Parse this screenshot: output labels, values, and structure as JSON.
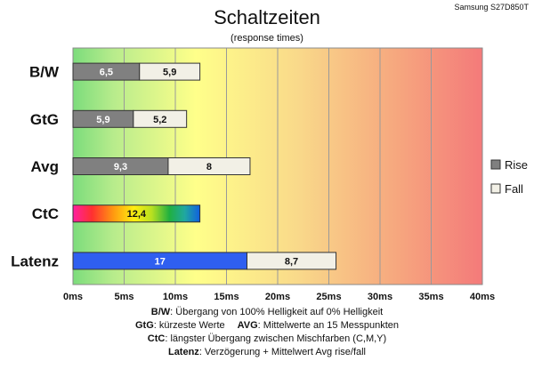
{
  "chart_data": {
    "type": "bar",
    "orientation": "horizontal",
    "stacked": true,
    "title": "Schaltzeiten",
    "subtitle": "(response times)",
    "corner_label": "Samsung S27D850T",
    "categories": [
      "B/W",
      "GtG",
      "Avg",
      "CtC",
      "Latenz"
    ],
    "series": [
      {
        "name": "Rise",
        "values": [
          6.5,
          5.9,
          9.3,
          null,
          17
        ],
        "labels": [
          "6,5",
          "5,9",
          "9,3",
          null,
          "17"
        ],
        "color": "#808080"
      },
      {
        "name": "Fall",
        "values": [
          5.9,
          5.2,
          8,
          null,
          8.7
        ],
        "labels": [
          "5,9",
          "5,2",
          "8",
          null,
          "8,7"
        ],
        "color": "#f2f0e6"
      }
    ],
    "single_bars": [
      {
        "category": "CtC",
        "value": 12.4,
        "label": "12,4",
        "fill": "rainbow"
      }
    ],
    "special_colors": {
      "latenz_rise": "#2f5ff0",
      "gradient_left": "#7cdc7c",
      "gradient_mid": "#ffff8a",
      "gradient_right": "#f47a7a"
    },
    "x_ticks": [
      "0ms",
      "5ms",
      "10ms",
      "15ms",
      "20ms",
      "25ms",
      "30ms",
      "35ms",
      "40ms"
    ],
    "xlim": [
      0,
      40
    ],
    "grid": true,
    "legend_position": "right"
  },
  "notes": {
    "line1_key": "B/W",
    "line1_text": ":  Übergang von 100% Helligkeit auf 0% Helligkeit",
    "line2_key_a": "GtG",
    "line2_text_a": ": kürzeste  Werte",
    "line2_key_b": "AVG",
    "line2_text_b": ": Mittelwerte  an 15 Messpunkten",
    "line3_key": "CtC",
    "line3_text": ": längster Übergang  zwischen Mischfarben (C,M,Y)",
    "line4_key": "Latenz",
    "line4_text": ": Verzögerung  + Mittelwert  Avg rise/fall"
  }
}
